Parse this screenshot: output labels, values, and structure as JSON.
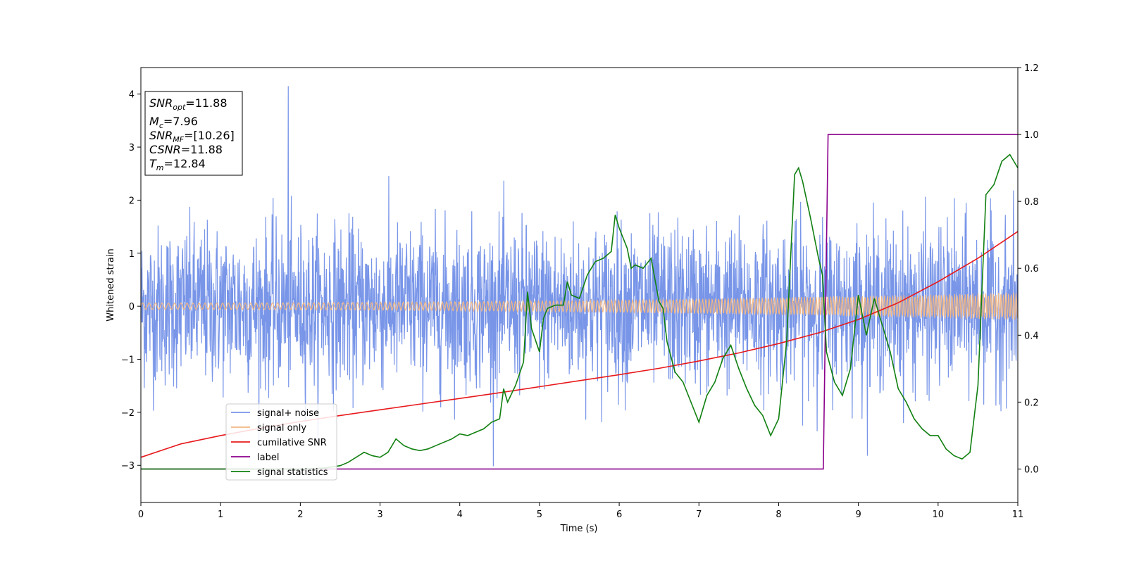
{
  "chart_data": {
    "type": "line",
    "xlabel": "Time (s)",
    "ylabel": "Whitened strain",
    "xlim": [
      0,
      11
    ],
    "ylim": [
      -3.7,
      4.5
    ],
    "ylim_right": [
      -0.1,
      1.2
    ],
    "xticks": [
      0,
      1,
      2,
      3,
      4,
      5,
      6,
      7,
      8,
      9,
      10,
      11
    ],
    "xtick_labels": [
      "0",
      "1",
      "2",
      "3",
      "4",
      "5",
      "6",
      "7",
      "8",
      "9",
      "10",
      "11"
    ],
    "yticks": [
      -3,
      -2,
      -1,
      0,
      1,
      2,
      3,
      4
    ],
    "ytick_labels": [
      "−3",
      "−2",
      "−1",
      "0",
      "1",
      "2",
      "3",
      "4"
    ],
    "yticks_right": [
      0.0,
      0.2,
      0.4,
      0.6,
      0.8,
      1.0,
      1.2
    ],
    "ytick_right_labels": [
      "0.0",
      "0.2",
      "0.4",
      "0.6",
      "0.8",
      "1.0",
      "1.2"
    ],
    "grid": false,
    "legend_position": "lower-left",
    "info_box": {
      "position": "top-left",
      "lines": [
        {
          "base": "SNR",
          "sub": "opt",
          "value": "=11.88"
        },
        {
          "base": "M",
          "sub": "c",
          "value": "=7.96"
        },
        {
          "base": "SNR",
          "sub": "MF",
          "value": "=[10.26]"
        },
        {
          "base": "CSNR",
          "sub": "",
          "value": "=11.88"
        },
        {
          "base": "T",
          "sub": "m",
          "value": "=12.84"
        }
      ]
    },
    "series": [
      {
        "name": "signal+ noise",
        "color": "#7895e8",
        "axis": "left",
        "generated": "gaussian noise",
        "noise_std": 0.75,
        "notable_peak": {
          "x": 1.85,
          "y": 4.15
        }
      },
      {
        "name": "signal only",
        "color": "#f4b782",
        "axis": "left",
        "generated": "chirp",
        "amplitude_start": 0.06,
        "amplitude_end": 0.26
      },
      {
        "name": "cumilative SNR",
        "color": "#e8191c",
        "axis": "right",
        "x": [
          0,
          0.5,
          1,
          1.5,
          2,
          2.5,
          3,
          3.5,
          4,
          4.5,
          5,
          5.5,
          6,
          6.5,
          7,
          7.5,
          8,
          8.5,
          9,
          9.5,
          10,
          10.5,
          11
        ],
        "y": [
          0.035,
          0.075,
          0.1,
          0.122,
          0.142,
          0.16,
          0.177,
          0.194,
          0.211,
          0.228,
          0.246,
          0.264,
          0.282,
          0.301,
          0.323,
          0.347,
          0.375,
          0.407,
          0.447,
          0.497,
          0.56,
          0.63,
          0.71
        ]
      },
      {
        "name": "label",
        "color": "#8b008b",
        "axis": "right",
        "x": [
          0,
          8.56,
          8.62,
          11
        ],
        "y": [
          0.0,
          0.0,
          1.0,
          1.0
        ]
      },
      {
        "name": "signal statistics",
        "color": "#118011",
        "axis": "right",
        "x": [
          0,
          1,
          2,
          2.3,
          2.5,
          2.6,
          2.7,
          2.8,
          2.9,
          3.0,
          3.1,
          3.2,
          3.3,
          3.4,
          3.5,
          3.6,
          3.7,
          3.8,
          3.9,
          4.0,
          4.1,
          4.2,
          4.3,
          4.4,
          4.5,
          4.55,
          4.6,
          4.7,
          4.8,
          4.85,
          4.9,
          5.0,
          5.05,
          5.1,
          5.2,
          5.3,
          5.35,
          5.4,
          5.5,
          5.6,
          5.7,
          5.8,
          5.9,
          5.95,
          6.0,
          6.1,
          6.15,
          6.2,
          6.3,
          6.4,
          6.5,
          6.55,
          6.6,
          6.7,
          6.8,
          6.9,
          7.0,
          7.1,
          7.2,
          7.3,
          7.4,
          7.5,
          7.6,
          7.7,
          7.8,
          7.9,
          8.0,
          8.1,
          8.2,
          8.25,
          8.3,
          8.4,
          8.5,
          8.55,
          8.6,
          8.7,
          8.8,
          8.9,
          9.0,
          9.1,
          9.2,
          9.3,
          9.4,
          9.5,
          9.6,
          9.7,
          9.8,
          9.9,
          10.0,
          10.1,
          10.2,
          10.3,
          10.4,
          10.5,
          10.6,
          10.7,
          10.8,
          10.9,
          11.0
        ],
        "y": [
          0.0,
          0.0,
          0.0,
          0.003,
          0.01,
          0.02,
          0.035,
          0.05,
          0.04,
          0.035,
          0.05,
          0.09,
          0.07,
          0.06,
          0.055,
          0.06,
          0.07,
          0.08,
          0.09,
          0.105,
          0.1,
          0.11,
          0.12,
          0.14,
          0.15,
          0.24,
          0.2,
          0.25,
          0.32,
          0.53,
          0.42,
          0.35,
          0.45,
          0.48,
          0.49,
          0.49,
          0.56,
          0.52,
          0.51,
          0.58,
          0.62,
          0.63,
          0.65,
          0.76,
          0.72,
          0.66,
          0.6,
          0.61,
          0.6,
          0.63,
          0.5,
          0.48,
          0.38,
          0.29,
          0.26,
          0.2,
          0.14,
          0.22,
          0.26,
          0.33,
          0.37,
          0.3,
          0.24,
          0.19,
          0.16,
          0.1,
          0.15,
          0.38,
          0.88,
          0.9,
          0.86,
          0.75,
          0.63,
          0.58,
          0.35,
          0.26,
          0.22,
          0.3,
          0.52,
          0.4,
          0.51,
          0.43,
          0.35,
          0.24,
          0.2,
          0.15,
          0.12,
          0.1,
          0.1,
          0.06,
          0.04,
          0.03,
          0.05,
          0.25,
          0.82,
          0.85,
          0.92,
          0.94,
          0.9
        ]
      }
    ]
  }
}
